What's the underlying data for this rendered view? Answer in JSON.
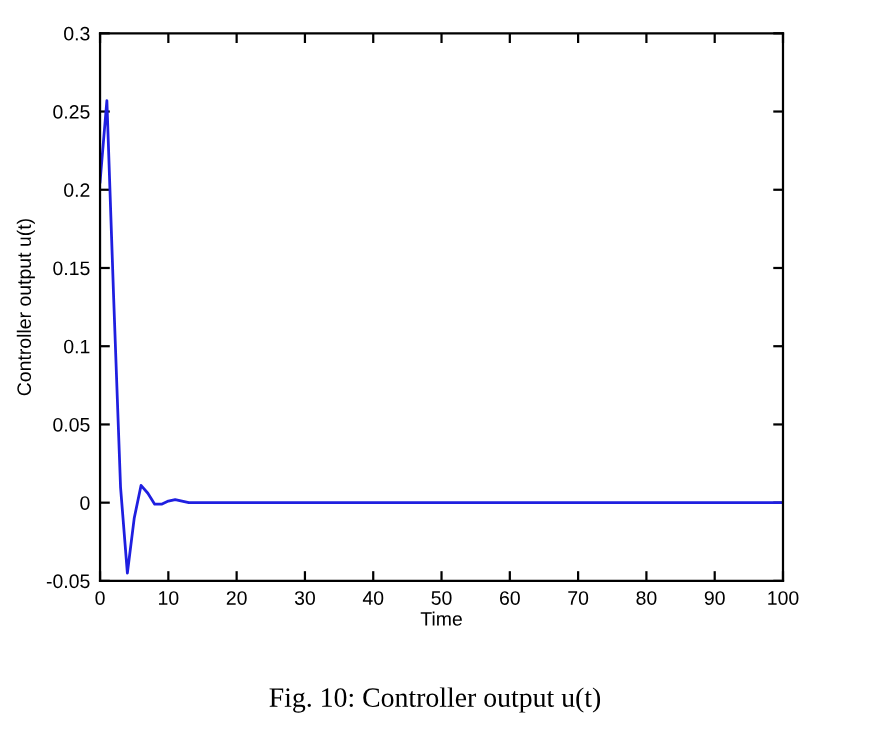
{
  "chart_data": {
    "type": "line",
    "xlabel": "Time",
    "ylabel": "Controller output u(t)",
    "annotations": [
      "Fig. 10: Controller output u(t)"
    ],
    "x": [
      0,
      1,
      2,
      3,
      4,
      5,
      6,
      7,
      8,
      9,
      10,
      11,
      12,
      13,
      20,
      40,
      60,
      80,
      100
    ],
    "series": [
      {
        "color": "#1f1fe0",
        "values": [
          0.205,
          0.257,
          0.13,
          0.01,
          -0.045,
          -0.01,
          0.011,
          0.006,
          -0.001,
          -0.001,
          0.001,
          0.002,
          0.001,
          0,
          0,
          0,
          0,
          0,
          0
        ]
      }
    ],
    "xlim": [
      0,
      100
    ],
    "xticks": [
      0,
      10,
      20,
      30,
      40,
      50,
      60,
      70,
      80,
      90,
      100
    ],
    "ylim": [
      -0.05,
      0.3
    ],
    "yticks": [
      -0.05,
      0,
      0.05,
      0.1,
      0.15,
      0.2,
      0.25,
      0.3
    ],
    "grid": false,
    "legend": false,
    "marker": "none",
    "line_style": "solid"
  }
}
